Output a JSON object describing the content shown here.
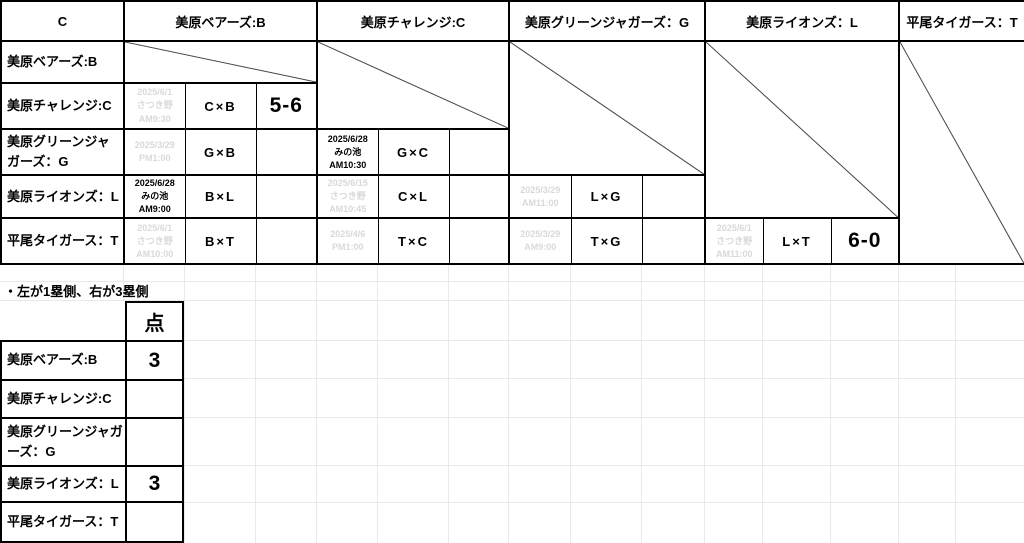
{
  "colors": {
    "border": "#000000",
    "grid_line": "#e9e9e9",
    "unplayed_text": "#d9d9d9",
    "diagonal_line": "#454545",
    "text": "#000000"
  },
  "cross_table": {
    "corner_label": "C",
    "columns": [
      {
        "key": "B",
        "label": "美原ベアーズ:B"
      },
      {
        "key": "C",
        "label": "美原チャレンジ:C"
      },
      {
        "key": "G",
        "label": "美原グリーンジャガーズ：G"
      },
      {
        "key": "L",
        "label": "美原ライオンズ：L"
      },
      {
        "key": "T",
        "label": "平尾タイガース：T"
      }
    ],
    "rows": [
      {
        "team": "美原ベアーズ:B"
      },
      {
        "team": "美原チャレンジ:C",
        "matches": {
          "B": {
            "schedule": "2025/6/1\nさつき野\nAM9:30",
            "label": "C×B",
            "score": "5-6"
          }
        }
      },
      {
        "team": "美原グリーンジャガーズ：G",
        "matches": {
          "B": {
            "schedule": "2025/3/29\nPM1:00",
            "label": "G×B",
            "score": ""
          },
          "C": {
            "schedule": "2025/6/28\nみの池\nAM10:30",
            "label": "G×C",
            "score": ""
          }
        }
      },
      {
        "team": "美原ライオンズ：L",
        "matches": {
          "B": {
            "schedule": "2025/6/28\nみの池\nAM9:00",
            "label": "B×L",
            "score": ""
          },
          "C": {
            "schedule": "2025/6/15\nさつき野\nAM10:45",
            "label": "C×L",
            "score": ""
          },
          "G": {
            "schedule": "2025/3/29\nAM11:00",
            "label": "L×G",
            "score": ""
          }
        }
      },
      {
        "team": "平尾タイガース：T",
        "matches": {
          "B": {
            "schedule": "2025/6/1\nさつき野\nAM10:00",
            "label": "B×T",
            "score": ""
          },
          "C": {
            "schedule": "2025/4/6\nPM1:00",
            "label": "T×C",
            "score": ""
          },
          "G": {
            "schedule": "2025/3/29\nAM9:00",
            "label": "T×G",
            "score": ""
          },
          "L": {
            "schedule": "2025/6/1\nさつき野\nAM11:00",
            "label": "L×T",
            "score": "6-0"
          }
        }
      }
    ]
  },
  "note": "・左が1塁側、右が3塁側",
  "score_table": {
    "points_header": "点",
    "rows": [
      {
        "team": "美原ベアーズ:B",
        "points": "3"
      },
      {
        "team": "美原チャレンジ:C",
        "points": ""
      },
      {
        "team": "美原グリーンジャガーズ：G",
        "points": ""
      },
      {
        "team": "美原ライオンズ：L",
        "points": "3"
      },
      {
        "team": "平尾タイガース：T",
        "points": ""
      }
    ]
  }
}
